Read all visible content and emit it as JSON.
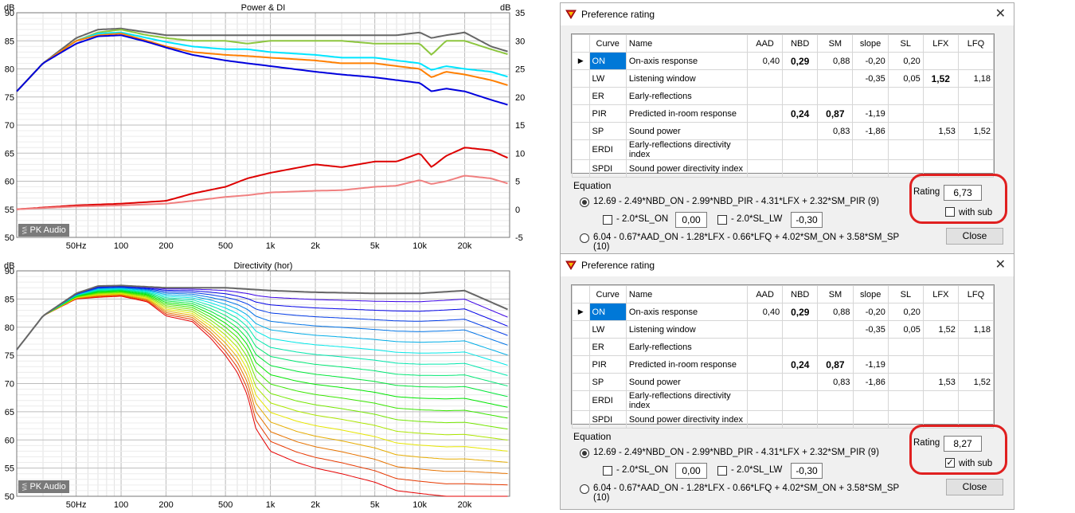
{
  "chart_data": [
    {
      "type": "line",
      "title": "Power & DI",
      "ylabel": "dB",
      "y2label": "dB",
      "ylim": [
        50,
        90
      ],
      "y2lim": [
        -5,
        35
      ],
      "yticks": [
        "90",
        "85",
        "80",
        "75",
        "70",
        "65",
        "60",
        "55",
        "50"
      ],
      "y2ticks": [
        "35",
        "30",
        "25",
        "20",
        "15",
        "10",
        "5",
        "0",
        "-5"
      ],
      "xscale": "log",
      "xlim": [
        20,
        40000
      ],
      "xticks": [
        "50Hz",
        "100",
        "200",
        "500",
        "1k",
        "2k",
        "5k",
        "10k",
        "20k"
      ],
      "xtick_values": [
        50,
        100,
        200,
        500,
        1000,
        2000,
        5000,
        10000,
        20000
      ],
      "grid": true,
      "badge": "PK Audio",
      "series": [
        {
          "color": "#666666",
          "x": [
            20,
            30,
            50,
            70,
            100,
            150,
            200,
            300,
            500,
            700,
            1000,
            2000,
            3000,
            5000,
            7000,
            10000,
            12000,
            15000,
            20000,
            30000,
            40000
          ],
          "y": [
            76,
            81,
            85.5,
            87,
            87.2,
            86.5,
            86,
            86,
            86,
            86,
            86,
            86,
            86,
            86,
            86,
            86.5,
            85.5,
            86,
            86.5,
            84,
            83
          ]
        },
        {
          "color": "#8dc63f",
          "x": [
            20,
            30,
            50,
            70,
            100,
            150,
            200,
            300,
            500,
            700,
            1000,
            2000,
            3000,
            5000,
            7000,
            10000,
            12000,
            15000,
            20000,
            30000,
            40000
          ],
          "y": [
            76,
            81,
            85,
            86.5,
            87,
            86,
            85.5,
            85,
            85,
            84.5,
            85,
            85,
            85,
            84.5,
            84.5,
            84.5,
            82.5,
            85,
            85,
            83.5,
            82.5
          ]
        },
        {
          "color": "#00e5ff",
          "x": [
            20,
            30,
            50,
            70,
            100,
            150,
            200,
            300,
            500,
            700,
            1000,
            2000,
            3000,
            5000,
            7000,
            10000,
            12000,
            15000,
            20000,
            30000,
            40000
          ],
          "y": [
            76,
            81,
            85,
            86.3,
            86.5,
            85.5,
            84.8,
            84,
            83.5,
            83.5,
            83,
            82.5,
            82,
            82,
            81.5,
            81,
            79.8,
            80.5,
            80,
            79.5,
            78.5
          ]
        },
        {
          "color": "#ff7f00",
          "x": [
            20,
            30,
            50,
            70,
            100,
            150,
            200,
            300,
            500,
            700,
            1000,
            2000,
            3000,
            5000,
            7000,
            10000,
            12000,
            15000,
            20000,
            30000,
            40000
          ],
          "y": [
            76,
            81,
            85,
            86,
            86.3,
            85,
            84,
            83,
            82.5,
            82.3,
            82,
            81.5,
            81,
            81,
            80.5,
            80,
            78.5,
            79.5,
            79,
            78,
            77
          ]
        },
        {
          "color": "#0000dd",
          "x": [
            20,
            30,
            50,
            70,
            100,
            150,
            200,
            300,
            500,
            700,
            1000,
            2000,
            3000,
            5000,
            7000,
            10000,
            12000,
            15000,
            20000,
            30000,
            40000
          ],
          "y": [
            76,
            81,
            84.5,
            85.8,
            86,
            84.8,
            83.8,
            82.5,
            81.5,
            81,
            80.5,
            79.5,
            79,
            78.5,
            78,
            77.5,
            76,
            76.5,
            76,
            74.5,
            73.5
          ]
        },
        {
          "color": "#dd0000",
          "axis": "y2",
          "x": [
            20,
            50,
            100,
            200,
            300,
            500,
            700,
            1000,
            2000,
            3000,
            5000,
            7000,
            10000,
            12000,
            15000,
            20000,
            30000,
            40000
          ],
          "y": [
            0,
            0.7,
            1,
            1.5,
            2.8,
            4,
            5.5,
            6.5,
            8,
            7.5,
            8.5,
            8.5,
            10,
            7.5,
            9.5,
            11,
            10.5,
            9
          ]
        },
        {
          "color": "#f08080",
          "axis": "y2",
          "x": [
            20,
            50,
            100,
            200,
            300,
            500,
            700,
            1000,
            2000,
            3000,
            5000,
            7000,
            10000,
            12000,
            15000,
            20000,
            30000,
            40000
          ],
          "y": [
            0,
            0.5,
            0.7,
            1,
            1.5,
            2.2,
            2.5,
            3,
            3.3,
            3.4,
            4,
            4.2,
            5.2,
            4.5,
            5,
            6,
            5.5,
            4.5
          ]
        }
      ]
    },
    {
      "type": "line",
      "title": "Directivity (hor)",
      "ylabel": "dB",
      "ylim": [
        50,
        90
      ],
      "yticks": [
        "90",
        "85",
        "80",
        "75",
        "70",
        "65",
        "60",
        "55",
        "50"
      ],
      "xscale": "log",
      "xlim": [
        20,
        40000
      ],
      "xticks": [
        "50Hz",
        "100",
        "200",
        "500",
        "1k",
        "2k",
        "5k",
        "10k",
        "20k"
      ],
      "xtick_values": [
        50,
        100,
        200,
        500,
        1000,
        2000,
        5000,
        10000,
        20000
      ],
      "grid": true,
      "badge": "PK Audio",
      "series_count": 19,
      "series_from_color": "#800080",
      "series_to_color": "#ff0000",
      "top_x": [
        20,
        30,
        50,
        70,
        100,
        200,
        300,
        500,
        1000,
        2000,
        5000,
        10000,
        20000,
        40000
      ],
      "top_y": [
        76,
        82,
        86,
        87.3,
        87.4,
        87,
        87,
        87,
        86.5,
        86.2,
        86,
        86,
        86.5,
        83
      ],
      "bottom_x": [
        20,
        30,
        50,
        70,
        100,
        150,
        200,
        300,
        400,
        500,
        600,
        700,
        800,
        1000,
        1500,
        2000,
        3000,
        5000,
        7000,
        10000,
        15000,
        20000,
        25000
      ],
      "bottom_y": [
        76,
        82,
        85,
        85.3,
        85.5,
        84.5,
        82,
        81,
        78,
        75,
        72,
        68,
        62,
        58,
        56,
        55,
        54,
        52.5,
        51,
        50.5,
        50,
        50,
        50
      ]
    }
  ],
  "dialogs": [
    {
      "title": "Preference rating",
      "columns": [
        "",
        "Curve",
        "Name",
        "AAD",
        "NBD",
        "SM",
        "slope",
        "SL",
        "LFX",
        "LFQ"
      ],
      "rows": [
        {
          "curve": "ON",
          "name": "On-axis response",
          "AAD": "0,40",
          "NBD": "0,29",
          "SM": "0,88",
          "slope": "-0,20",
          "SL": "0,20",
          "LFX": "",
          "LFQ": "",
          "selected": true,
          "boldNBD": true
        },
        {
          "curve": "LW",
          "name": "Listening window",
          "AAD": "",
          "NBD": "",
          "SM": "",
          "slope": "-0,35",
          "SL": "0,05",
          "LFX": "1,52",
          "LFQ": "1,18",
          "boldLFX": true
        },
        {
          "curve": "ER",
          "name": "Early-reflections",
          "AAD": "",
          "NBD": "",
          "SM": "",
          "slope": "",
          "SL": "",
          "LFX": "",
          "LFQ": ""
        },
        {
          "curve": "PIR",
          "name": "Predicted in-room response",
          "AAD": "",
          "NBD": "0,24",
          "SM": "0,87",
          "slope": "-1,19",
          "SL": "",
          "LFX": "",
          "LFQ": "",
          "boldNBD": true,
          "boldSM": true
        },
        {
          "curve": "SP",
          "name": "Sound power",
          "AAD": "",
          "NBD": "",
          "SM": "0,83",
          "slope": "-1,86",
          "SL": "",
          "LFX": "1,53",
          "LFQ": "1,52"
        },
        {
          "curve": "ERDI",
          "name": "Early-reflections directivity index",
          "AAD": "",
          "NBD": "",
          "SM": "",
          "slope": "",
          "SL": "",
          "LFX": "",
          "LFQ": ""
        },
        {
          "curve": "SPDI",
          "name": "Sound power directivity index",
          "AAD": "",
          "NBD": "",
          "SM": "",
          "slope": "",
          "SL": "",
          "LFX": "",
          "LFQ": ""
        }
      ],
      "equation_label": "Equation",
      "eq1": "12.69 - 2.49*NBD_ON - 2.99*NBD_PIR - 4.31*LFX + 2.32*SM_PIR (9)",
      "eq2": "6.04 - 0.67*AAD_ON - 1.28*LFX - 0.66*LFQ + 4.02*SM_ON + 3.58*SM_SP (10)",
      "sl_on_label": "- 2.0*SL_ON",
      "sl_on_value": "0,00",
      "sl_lw_label": "- 2.0*SL_LW",
      "sl_lw_value": "-0,30",
      "rating_label": "Rating",
      "rating_value": "6,73",
      "with_sub_label": "with sub",
      "with_sub_checked": false,
      "close_label": "Close"
    },
    {
      "title": "Preference rating",
      "columns": [
        "",
        "Curve",
        "Name",
        "AAD",
        "NBD",
        "SM",
        "slope",
        "SL",
        "LFX",
        "LFQ"
      ],
      "rows": [
        {
          "curve": "ON",
          "name": "On-axis response",
          "AAD": "0,40",
          "NBD": "0,29",
          "SM": "0,88",
          "slope": "-0,20",
          "SL": "0,20",
          "LFX": "",
          "LFQ": "",
          "selected": true,
          "boldNBD": true
        },
        {
          "curve": "LW",
          "name": "Listening window",
          "AAD": "",
          "NBD": "",
          "SM": "",
          "slope": "-0,35",
          "SL": "0,05",
          "LFX": "1,52",
          "LFQ": "1,18"
        },
        {
          "curve": "ER",
          "name": "Early-reflections",
          "AAD": "",
          "NBD": "",
          "SM": "",
          "slope": "",
          "SL": "",
          "LFX": "",
          "LFQ": ""
        },
        {
          "curve": "PIR",
          "name": "Predicted in-room response",
          "AAD": "",
          "NBD": "0,24",
          "SM": "0,87",
          "slope": "-1,19",
          "SL": "",
          "LFX": "",
          "LFQ": "",
          "boldNBD": true,
          "boldSM": true
        },
        {
          "curve": "SP",
          "name": "Sound power",
          "AAD": "",
          "NBD": "",
          "SM": "0,83",
          "slope": "-1,86",
          "SL": "",
          "LFX": "1,53",
          "LFQ": "1,52"
        },
        {
          "curve": "ERDI",
          "name": "Early-reflections directivity index",
          "AAD": "",
          "NBD": "",
          "SM": "",
          "slope": "",
          "SL": "",
          "LFX": "",
          "LFQ": ""
        },
        {
          "curve": "SPDI",
          "name": "Sound power directivity index",
          "AAD": "",
          "NBD": "",
          "SM": "",
          "slope": "",
          "SL": "",
          "LFX": "",
          "LFQ": ""
        }
      ],
      "equation_label": "Equation",
      "eq1": "12.69 - 2.49*NBD_ON - 2.99*NBD_PIR - 4.31*LFX + 2.32*SM_PIR (9)",
      "eq2": "6.04 - 0.67*AAD_ON - 1.28*LFX - 0.66*LFQ + 4.02*SM_ON + 3.58*SM_SP (10)",
      "sl_on_label": "- 2.0*SL_ON",
      "sl_on_value": "0,00",
      "sl_lw_label": "- 2.0*SL_LW",
      "sl_lw_value": "-0,30",
      "rating_label": "Rating",
      "rating_value": "8,27",
      "with_sub_label": "with sub",
      "with_sub_checked": true,
      "close_label": "Close"
    }
  ]
}
